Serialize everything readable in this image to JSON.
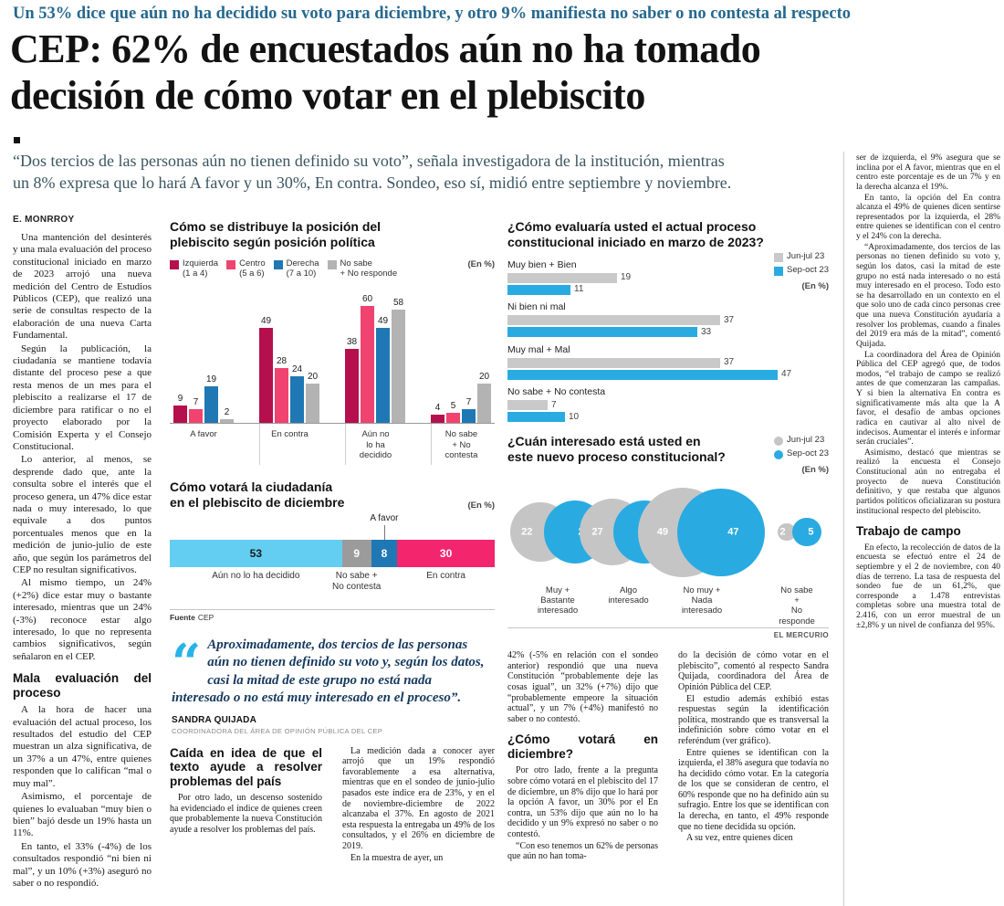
{
  "kicker": "Un 53% dice que aún no ha decidido su voto para diciembre, y otro 9% manifiesta no saber o no contesta al respecto",
  "headline_lines": [
    "CEP: 62% de encuestados aún no ha tomado",
    "decisión de cómo votar en el plebiscito"
  ],
  "subheadline_lines": [
    "“Dos tercios de las personas aún no tienen definido su voto”, señala investigadora de la institución, mientras",
    "un 8% expresa que lo hará A favor y un 30%, En contra. Sondeo, eso sí, midió entre septiembre y noviembre."
  ],
  "byline": "E. MONRROY",
  "source": {
    "label": "Fuente",
    "value": "CEP"
  },
  "credit": "EL MERCURIO",
  "quote": {
    "mark": "“",
    "text": "Aproximadamente, dos tercios de las personas aún no tienen definido su voto y, según los datos, casi la mitad de este grupo no está nada interesado o no está muy interesado en el proceso”.",
    "name": "SANDRA QUIJADA",
    "role": "COORDINADORA DEL ÁREA DE OPINIÓN PÚBLICA DEL CEP"
  },
  "article": {
    "col1_top": [
      "Una mantención del desinterés y una mala evaluación del proceso constitucional iniciado en marzo de 2023 arrojó una nueva medición del Centro de Estudios Públicos (CEP), que realizó una serie de consultas respecto de la elaboración de una nueva Carta Fundamental.",
      "Según la publicación, la ciudadanía se mantiene todavía distante del proceso pese a que resta menos de un mes para el plebiscito a realizarse el 17 de diciembre para ratificar o no el proyecto elaborado por la Comisión Experta y el Consejo Constitucional.",
      "Lo anterior, al menos, se desprende dado que, ante la consulta sobre el interés que el proceso genera, un 47% dice estar nada o muy interesado, lo que equivale a dos puntos porcentuales menos que en la medición de junio-julio de este año, que según los parámetros del CEP no resultan significativos.",
      "Al mismo tiempo, un 24% (+2%) dice estar muy o bastante interesado, mientras que un 24% (-3%) reconoce estar algo interesado, lo que no representa cambios significativos, según señalaron en el CEP."
    ],
    "col1_subhead": "Mala evaluación del proceso",
    "col1_bottom": [
      "A la hora de hacer una evaluación del actual proceso, los resultados del estudio del CEP muestran un alza significativa, de un 37% a un 47%, entre quienes responden que lo califican “mal o muy mal”.",
      "Asimismo, el porcentaje de quienes lo evaluaban “muy bien o bien” bajó desde un 19% hasta un 11%.",
      "En tanto, el 33% (-4%) de los consultados respondió “ni bien ni mal”, y un 10% (+3%) aseguró no saber o no respondió."
    ],
    "colA_subhead": "Caída en idea de que el texto ayude a resolver problemas del país",
    "colA": [
      "Por otro lado, un descenso sostenido ha evidenciado el índice de quienes creen que probablemente la nueva Constitución ayude a resolver los problemas del país."
    ],
    "colB": [
      "La medición dada a conocer ayer arrojó que un 19% respondió favorablemente a esa alternativa, mientras que en el sondeo de junio-julio pasados este índice era de 23%, y en el de noviembre-diciembre de 2022 alcanzaba el 37%. En agosto de 2021 esta respuesta la entregaba un 49% de los consultados, y el 26% en diciembre de 2019.",
      "En la muestra de ayer, un"
    ],
    "colC_top": [
      "42% (-5% en relación con el sondeo anterior) respondió que una nueva Constitución “probablemente deje las cosas igual”, un 32% (+7%) dijo que “probablemente empeore la situación actual”, y un 7% (+4%) manifestó no saber o no contestó."
    ],
    "colC_subhead": "¿Cómo votará en diciembre?",
    "colC_bottom": [
      "Por otro lado, frente a la pregunta sobre cómo votará en el plebiscito del 17 de diciembre, un 8% dijo que lo hará por la opción A favor, un 30% por el En contra, un 53% dijo que aún no lo ha decidido y un 9% expresó no saber o no contestó.",
      "“Con eso tenemos un 62% de personas que aún no han toma-"
    ],
    "colD": [
      "do la decisión de cómo votar en el plebiscito”, comentó al respecto Sandra Quijada, coordinadora del Área de Opinión Pública del CEP.",
      "El estudio además exhibió estas respuestas según la identificación política, mostrando que es transversal la indefinición sobre cómo votar en el referéndum (ver gráfico).",
      "Entre quienes se identifican con la izquierda, el 38% asegura que todavía no ha decidido cómo votar. En la categoría de los que se consideran de centro, el 60% responde que no ha definido aún su sufragio. Entre los que se identifican con la derecha, en tanto, el 49% responde que no tiene decidida su opción.",
      "A su vez, entre quienes dicen"
    ],
    "colR_top": [
      "ser de izquierda, el 9% asegura que se inclina por el A favor, mientras que en el centro este porcentaje es de un 7% y en la derecha alcanza el 19%.",
      "En tanto, la opción del En contra alcanza el 49% de quienes dicen sentirse representados por la izquierda, el 28% entre quienes se identifican con el centro y el 24% con la derecha.",
      "“Aproximadamente, dos tercios de las personas no tienen definido su voto y, según los datos, casi la mitad de este grupo no está nada interesado o no está muy interesado en el proceso. Todo esto se ha desarrollado en un contexto en el que solo uno de cada cinco personas cree que una nueva Constitución ayudaría a resolver los problemas, cuando a finales del 2019 era más de la mitad”, comentó Quijada.",
      "La coordinadora del Área de Opinión Pública del CEP agregó que, de todos modos, “el trabajo de campo se realizó antes de que comenzaran las campañas. Y si bien la alternativa En contra es significativamente más alta que la A favor, el desafío de ambas opciones radica en cautivar al alto nivel de indecisos. Aumentar el interés e informar serán cruciales”.",
      "Asimismo, destacó que mientras se realizó la encuesta el Consejo Constitucional aún no entregaba el proyecto de nueva Constitución definitivo, y que restaba que algunos partidos políticos oficializaran su postura institucional respecto del plebiscito."
    ],
    "colR_subhead": "Trabajo de campo",
    "colR_bottom": [
      "En efecto, la recolección de datos de la encuesta se efectuó entre el 24 de septiembre y el 2 de noviembre, con 40 días de terreno. La tasa de respuesta del sondeo fue de un 61,2%, que corresponde a 1.478 entrevistas completas sobre una muestra total de 2.416, con un error muestral de un ±2,8% y un nivel de confianza del 95%."
    ]
  },
  "chart_data": [
    {
      "type": "bar",
      "title": "Cómo se distribuye la posición del\nplebiscito según posición política",
      "unit_label": "(En %)",
      "categories": [
        "A favor",
        "En contra",
        "Aún no\nlo ha\ndecidido",
        "No sabe\n+ No\ncontesta"
      ],
      "series": [
        {
          "name": "Izquierda\n(1 a 4)",
          "color": "#b5104d",
          "values": [
            9,
            49,
            38,
            4
          ]
        },
        {
          "name": "Centro\n(5 a 6)",
          "color": "#f0436f",
          "values": [
            7,
            28,
            60,
            5
          ]
        },
        {
          "name": "Derecha\n(7 a 10)",
          "color": "#1f78b4",
          "values": [
            19,
            24,
            49,
            7
          ]
        },
        {
          "name": "No sabe\n+ No responde",
          "color": "#b3b3b3",
          "values": [
            2,
            20,
            58,
            20
          ]
        }
      ],
      "ylim": [
        0,
        60
      ]
    },
    {
      "type": "stacked-bar",
      "title": "Cómo votará la ciudadanía\nen el plebiscito de diciembre",
      "unit_label": "(En %)",
      "segments": [
        {
          "label": "Aún no lo ha decidido",
          "value": 53,
          "color": "#63cef2",
          "label_pos": "below",
          "text_color": "#1a1a1a"
        },
        {
          "label": "No sabe +\nNo contesta",
          "value": 9,
          "color": "#9b9b9b",
          "label_pos": "below",
          "text_color": "#ffffff"
        },
        {
          "label": "A favor",
          "value": 8,
          "color": "#1f78b4",
          "label_pos": "above",
          "text_color": "#ffffff"
        },
        {
          "label": "En contra",
          "value": 30,
          "color": "#f2256d",
          "label_pos": "below",
          "text_color": "#ffffff"
        }
      ]
    },
    {
      "type": "bar-horizontal",
      "title": "¿Cómo evaluaría usted el actual proceso\nconstitucional iniciado en marzo de 2023?",
      "unit_label": "(En %)",
      "categories": [
        "Muy bien + Bien",
        "Ni bien ni mal",
        "Muy mal + Mal",
        "No sabe + No contesta"
      ],
      "series": [
        {
          "name": "Jun-jul 23",
          "color": "#c9c9c9",
          "values": [
            19,
            37,
            37,
            7
          ]
        },
        {
          "name": "Sep-oct 23",
          "color": "#29abe2",
          "values": [
            11,
            33,
            47,
            10
          ]
        }
      ],
      "xlim": [
        0,
        50
      ]
    },
    {
      "type": "bubble",
      "title": "¿Cuán interesado está usted en\neste nuevo proceso constitucional?",
      "unit_label": "(En %)",
      "categories": [
        "Muy +\nBastante\ninteresado",
        "Algo\ninteresado",
        "No muy +\nNada\ninteresado",
        "No sabe +\nNo responde"
      ],
      "series": [
        {
          "name": "Jun-jul 23",
          "color": "#c5c5c5",
          "values": [
            22,
            27,
            49,
            2
          ]
        },
        {
          "name": "Sep-oct 23",
          "color": "#29abe2",
          "values": [
            24,
            24,
            47,
            5
          ]
        }
      ]
    }
  ]
}
